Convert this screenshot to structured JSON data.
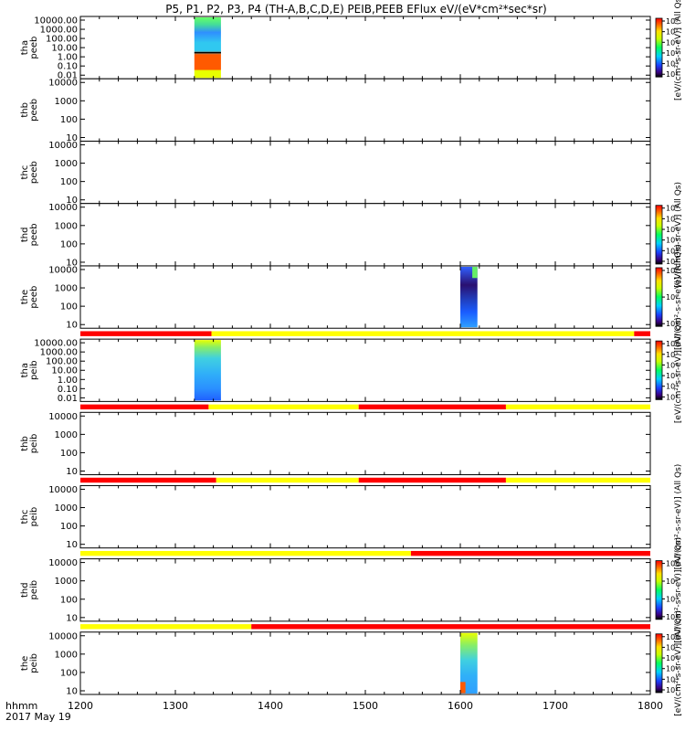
{
  "title": "P5, P1, P2, P3, P4 (TH-A,B,C,D,E) PEIB,PEEB EFlux eV/(eV*cm²*sec*sr)",
  "colors": {
    "spec_bright": "#e8ff00",
    "spec_orange": "#ff5a00",
    "spec_green": "#66ee66",
    "spec_cyan": "#2fc7f0",
    "spec_blue": "#1a5cff",
    "spec_dark": "#2a1070",
    "bar_red": "#ff0000",
    "bar_yellow": "#ffff00"
  },
  "xaxis": {
    "ticks": [
      "1200",
      "1300",
      "1400",
      "1500",
      "1600",
      "1700",
      "1800"
    ],
    "label": "hhmm",
    "date": "2017 May 19",
    "range": [
      1200,
      1800
    ]
  },
  "chart_data": {
    "type": "heatmap",
    "panels": [
      {
        "id": "tha_peeb",
        "label1": "tha",
        "label2": "peeb",
        "yticks": [
          "10000.00",
          "1000.00",
          "100.00",
          "10.00",
          "1.00",
          "0.10",
          "0.01"
        ],
        "data_spans": [
          {
            "x": [
              1320,
              1348
            ],
            "style": "tha_peeb"
          }
        ],
        "colorbar": {
          "ticks": [
            "10⁸",
            "10⁷",
            "10⁶",
            "10⁵",
            "10⁴",
            "10³"
          ],
          "label": "[eV/(cm²-s-sr-eV)] (All Qs)"
        }
      },
      {
        "id": "thb_peeb",
        "label1": "thb",
        "label2": "peeb",
        "yticks": [
          "10000",
          "1000",
          "100",
          "10"
        ],
        "data_spans": []
      },
      {
        "id": "thc_peeb",
        "label1": "thc",
        "label2": "peeb",
        "yticks": [
          "10000",
          "1000",
          "100",
          "10"
        ],
        "data_spans": []
      },
      {
        "id": "thd_peeb",
        "label1": "thd",
        "label2": "peeb",
        "yticks": [
          "10000",
          "1000",
          "100",
          "10"
        ],
        "data_spans": [],
        "colorbar": {
          "ticks": [
            "10⁸",
            "10⁷",
            "10⁶",
            "10⁵",
            "10⁴",
            "10³"
          ],
          "label": "[eV/(cm²-s-sr-eV)] (All Qs)"
        }
      },
      {
        "id": "the_peeb",
        "label1": "the",
        "label2": "peeb",
        "yticks": [
          "10000",
          "1000",
          "100",
          "10"
        ],
        "data_spans": [
          {
            "x": [
              1600,
              1618
            ],
            "style": "the_peeb"
          }
        ],
        "colorbar": {
          "ticks": [
            "10⁷",
            "10⁶",
            "10⁵"
          ],
          "label": "[eV/(cm²-s-sr-eV)] (All Qs)"
        },
        "status_bar": [
          {
            "x": [
              1200,
              1338
            ],
            "c": "red"
          },
          {
            "x": [
              1338,
              1783
            ],
            "c": "yellow"
          },
          {
            "x": [
              1783,
              1800
            ],
            "c": "red"
          }
        ]
      },
      {
        "id": "tha_peib",
        "label1": "tha",
        "label2": "peib",
        "yticks": [
          "10000.00",
          "1000.00",
          "100.00",
          "10.00",
          "1.00",
          "0.10",
          "0.01"
        ],
        "data_spans": [
          {
            "x": [
              1320,
              1348
            ],
            "style": "tha_peib"
          }
        ],
        "colorbar": {
          "ticks": [
            "10⁸",
            "10⁷",
            "10⁶",
            "10⁵",
            "10⁴",
            "10³"
          ],
          "label": "[eV/(cm²-s-sr-eV)] (All Qs)"
        },
        "status_bar": [
          {
            "x": [
              1200,
              1335
            ],
            "c": "red"
          },
          {
            "x": [
              1335,
              1493
            ],
            "c": "yellow"
          },
          {
            "x": [
              1493,
              1648
            ],
            "c": "red"
          },
          {
            "x": [
              1648,
              1800
            ],
            "c": "yellow"
          }
        ]
      },
      {
        "id": "thb_peib",
        "label1": "thb",
        "label2": "peib",
        "yticks": [
          "10000",
          "1000",
          "100",
          "10"
        ],
        "data_spans": [],
        "status_bar": [
          {
            "x": [
              1200,
              1343
            ],
            "c": "red"
          },
          {
            "x": [
              1343,
              1493
            ],
            "c": "yellow"
          },
          {
            "x": [
              1493,
              1648
            ],
            "c": "red"
          },
          {
            "x": [
              1648,
              1800
            ],
            "c": "yellow"
          }
        ]
      },
      {
        "id": "thc_peib",
        "label1": "thc",
        "label2": "peib",
        "yticks": [
          "10000",
          "1000",
          "100",
          "10"
        ],
        "data_spans": [],
        "colorbar": {
          "ticks": [],
          "label": "[eV/(cm²-s-sr-eV)] (All Qs)"
        },
        "status_bar": [
          {
            "x": [
              1200,
              1548
            ],
            "c": "yellow"
          },
          {
            "x": [
              1548,
              1800
            ],
            "c": "red"
          }
        ]
      },
      {
        "id": "thd_peib",
        "label1": "thd",
        "label2": "peib",
        "yticks": [
          "10000",
          "1000",
          "100",
          "10"
        ],
        "data_spans": [],
        "colorbar": {
          "ticks": [
            "10⁶",
            "10⁵",
            "10⁴",
            "10³"
          ],
          "label": "[eV/(cm²-s-sr-eV)] (All Qs)"
        },
        "status_bar": [
          {
            "x": [
              1200,
              1380
            ],
            "c": "yellow"
          },
          {
            "x": [
              1380,
              1800
            ],
            "c": "red"
          }
        ]
      },
      {
        "id": "the_peib",
        "label1": "the",
        "label2": "peib",
        "yticks": [
          "10000",
          "1000",
          "100",
          "10"
        ],
        "data_spans": [
          {
            "x": [
              1600,
              1618
            ],
            "style": "the_peib"
          }
        ],
        "colorbar": {
          "ticks": [
            "10⁸",
            "10⁷",
            "10⁶",
            "10⁵",
            "10⁴",
            "10³"
          ],
          "label": "[eV/(cm²-s-sr-eV)] (All Qs)"
        }
      }
    ]
  }
}
